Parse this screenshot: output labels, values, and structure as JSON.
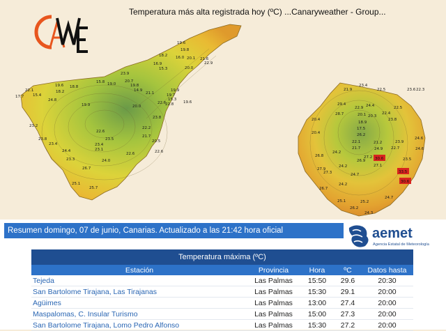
{
  "map": {
    "title": "Temperatura más alta registrada hoy (ºC)     ...Canaryweather - Group...",
    "logo_text": "CAWE",
    "tenerife_values": [
      "22.1",
      "17.7",
      "15.4",
      "18.2",
      "18.8",
      "15.8",
      "19.0",
      "23.9",
      "20.7",
      "19.8",
      "19.6",
      "19.8",
      "16.0",
      "18.2",
      "16.9",
      "15.3",
      "20.1",
      "20.0",
      "21.6",
      "22.9",
      "19.9",
      "19.7",
      "14.9",
      "21.1",
      "15.3",
      "20.0",
      "22.6",
      "22.8",
      "23.2",
      "22.6",
      "22.2",
      "21.7",
      "23.8",
      "23.5",
      "22.6",
      "24.4",
      "23.4",
      "23.1",
      "23.4",
      "23.3",
      "24.0",
      "26.7",
      "25.1",
      "25.7",
      "23.8",
      "20.5",
      "19.6",
      "24.8",
      "19.6",
      "19.9",
      "22.6"
    ],
    "grancanaria_values": [
      "21.9",
      "23.4",
      "22.5",
      "23.6",
      "22.3",
      "20.4",
      "20.4",
      "28.7",
      "29.4",
      "22.9",
      "24.4",
      "22.4",
      "23.8",
      "22.5",
      "20.3",
      "18.9",
      "17.5",
      "22.1",
      "21.7",
      "26.2",
      "26.9",
      "24.9",
      "23.9",
      "20.1",
      "21.2",
      "22.7",
      "24.6",
      "26.8",
      "24.2",
      "23.5",
      "27.9",
      "24.6",
      "24.2",
      "27.2",
      "27.1",
      "27.3",
      "24.2",
      "24.7",
      "26.7",
      "25.2",
      "26.2",
      "25.1",
      "24.3",
      "24.7"
    ],
    "hot_values": [
      "30.6",
      "33.5",
      "30.6"
    ]
  },
  "report": {
    "summary": "Resumen domingo, 07 de junio, Canarias. Actualizado a las 21:42 hora oficial",
    "aemet_name": "aemet",
    "aemet_subtitle": "Agencia Estatal de Meteorología",
    "table_title": "Temperatura máxima (ºC)",
    "columns": [
      "Estación",
      "Provincia",
      "Hora",
      "ºC",
      "Datos hasta"
    ],
    "rows": [
      {
        "station": "Tejeda",
        "province": "Las Palmas",
        "time": "15:50",
        "temp": "29.6",
        "until": "20:30"
      },
      {
        "station": "San Bartolome Tirajana, Las Tirajanas",
        "province": "Las Palmas",
        "time": "15:30",
        "temp": "29.1",
        "until": "20:00"
      },
      {
        "station": "Agüimes",
        "province": "Las Palmas",
        "time": "13:00",
        "temp": "27.4",
        "until": "20:00"
      },
      {
        "station": "Maspalomas, C. Insular Turismo",
        "province": "Las Palmas",
        "time": "15:00",
        "temp": "27.3",
        "until": "20:00"
      },
      {
        "station": "San Bartolome Tirajana, Lomo Pedro Alfonso",
        "province": "Las Palmas",
        "time": "15:30",
        "temp": "27.2",
        "until": "20:00"
      }
    ]
  }
}
